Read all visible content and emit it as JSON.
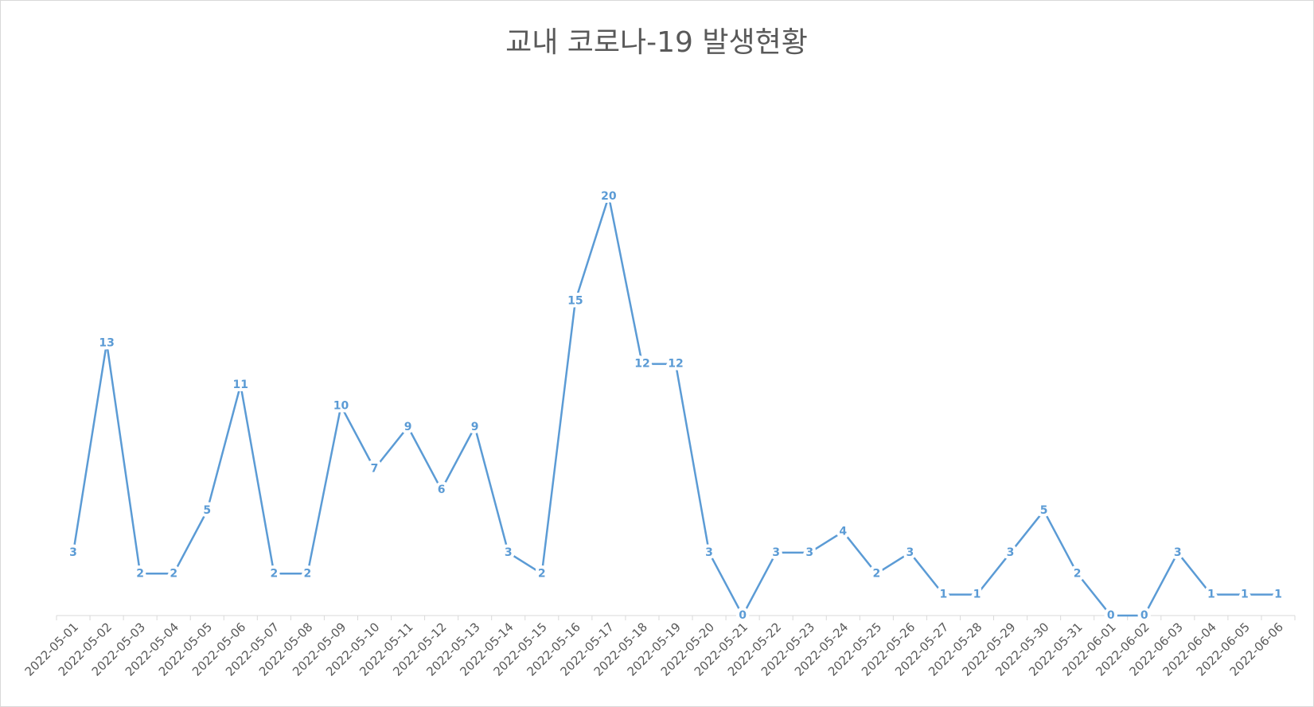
{
  "chart_data": {
    "type": "line",
    "title": "교내 코로나-19 발생현황",
    "categories": [
      "2022-05-01",
      "2022-05-02",
      "2022-05-03",
      "2022-05-04",
      "2022-05-05",
      "2022-05-06",
      "2022-05-07",
      "2022-05-08",
      "2022-05-09",
      "2022-05-10",
      "2022-05-11",
      "2022-05-12",
      "2022-05-13",
      "2022-05-14",
      "2022-05-15",
      "2022-05-16",
      "2022-05-17",
      "2022-05-18",
      "2022-05-19",
      "2022-05-20",
      "2022-05-21",
      "2022-05-22",
      "2022-05-23",
      "2022-05-24",
      "2022-05-25",
      "2022-05-26",
      "2022-05-27",
      "2022-05-28",
      "2022-05-29",
      "2022-05-30",
      "2022-05-31",
      "2022-06-01",
      "2022-06-02",
      "2022-06-03",
      "2022-06-04",
      "2022-06-05",
      "2022-06-06"
    ],
    "values": [
      3,
      13,
      2,
      2,
      5,
      11,
      2,
      2,
      10,
      7,
      9,
      6,
      9,
      3,
      2,
      15,
      20,
      12,
      12,
      3,
      0,
      3,
      3,
      4,
      2,
      3,
      1,
      1,
      3,
      5,
      2,
      0,
      0,
      3,
      1,
      1,
      1
    ],
    "color": "#5b9bd5",
    "ylim": [
      0,
      25
    ],
    "grid": false
  }
}
